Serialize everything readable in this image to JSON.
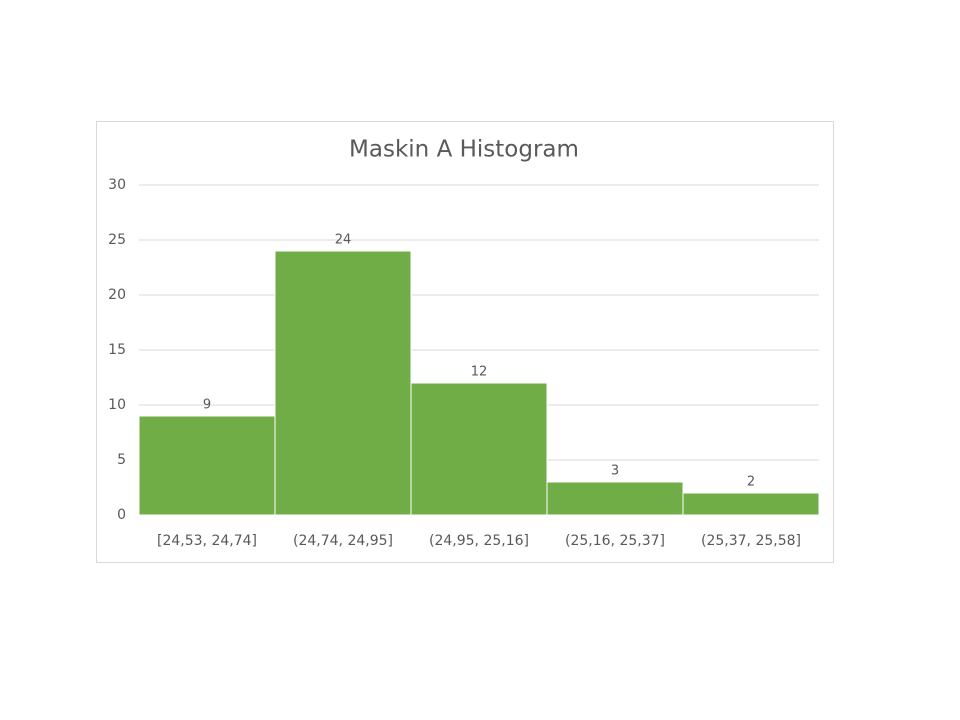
{
  "chart_data": {
    "type": "bar",
    "title": "Maskin A Histogram",
    "categories": [
      "[24,53, 24,74]",
      "(24,74, 24,95]",
      "(24,95, 25,16]",
      "(25,16, 25,37]",
      "(25,37, 25,58]"
    ],
    "values": [
      9,
      24,
      12,
      3,
      2
    ],
    "color": "#70ad47",
    "ylim": [
      0,
      30
    ],
    "yticks": [
      0,
      5,
      10,
      15,
      20,
      25,
      30
    ],
    "grid": true
  }
}
